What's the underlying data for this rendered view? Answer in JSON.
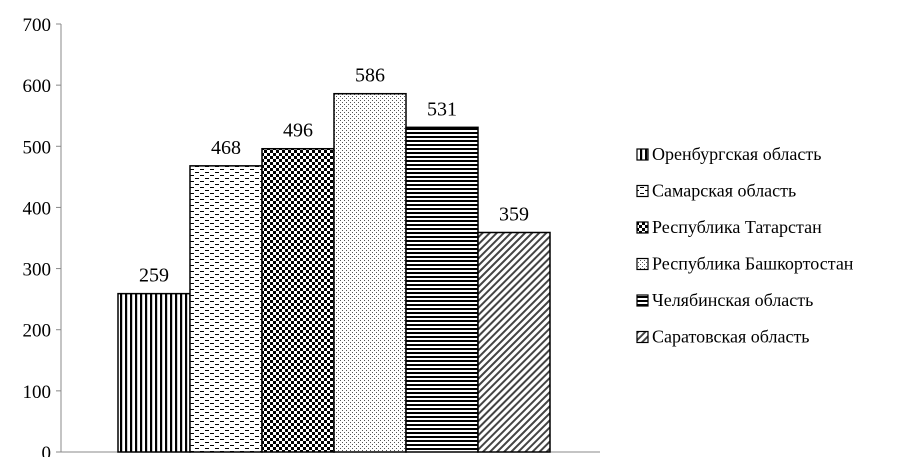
{
  "chart_data": {
    "type": "bar",
    "title": "",
    "xlabel": "",
    "ylabel": "",
    "categories": [
      "Оренбургская область",
      "Самарская область",
      "Республика Татарстан",
      "Республика Башкортостан",
      "Челябинская область",
      "Саратовская область"
    ],
    "values": [
      259,
      468,
      496,
      586,
      531,
      359
    ],
    "ylim": [
      0,
      700
    ],
    "yticks": [
      "0",
      "100",
      "200",
      "300",
      "400",
      "500",
      "600",
      "700"
    ],
    "grid": false,
    "legend_position": "right",
    "patterns": [
      "vertical-lines",
      "dashes",
      "checker",
      "dots",
      "horizontal-lines",
      "diagonal-lines"
    ]
  }
}
